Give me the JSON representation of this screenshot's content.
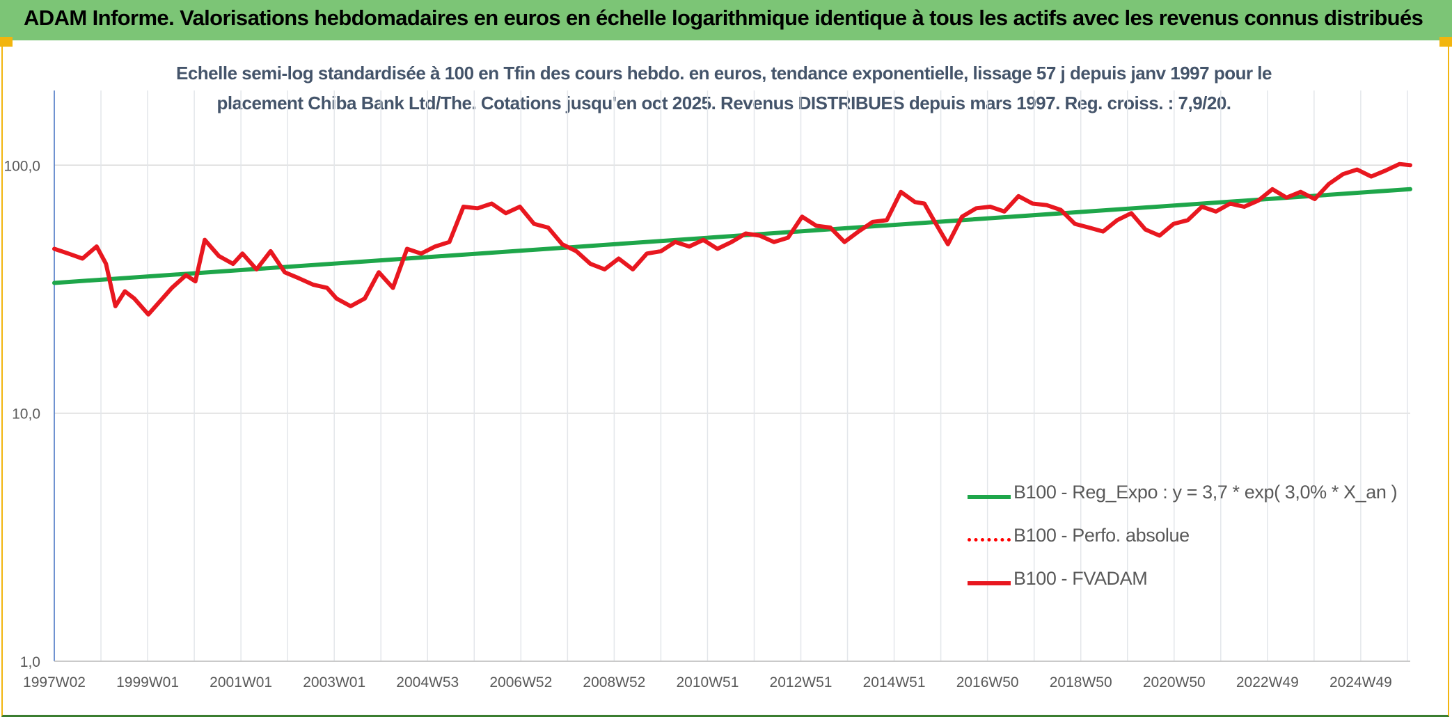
{
  "header": {
    "title": "ADAM Informe. Valorisations hebdomadaires en euros en échelle logarithmique identique à tous les actifs avec les revenus connus distribués"
  },
  "chart_data": {
    "type": "line",
    "subtitle_line1": "Echelle semi-log standardisée à 100 en Tfin des cours hebdo. en euros, tendance exponentielle, lissage 57 j depuis janv 1997 pour le",
    "subtitle_line2": "placement Chiba Bank Ltd/The. Cotations jusqu'en oct 2025. Revenus DISTRIBUES depuis mars 1997. Reg. croiss. : 7,9/20.",
    "y_scale": "log",
    "ylim": [
      1,
      200
    ],
    "y_ticks": [
      1,
      10,
      100
    ],
    "y_tick_labels": [
      "1,0",
      "10,0",
      "100,0"
    ],
    "x_range": [
      1997.0,
      2025.83
    ],
    "x_tick_labels": [
      "1997W02",
      "1999W01",
      "2001W01",
      "2003W01",
      "2004W53",
      "2006W52",
      "2008W52",
      "2010W51",
      "2012W51",
      "2014W51",
      "2016W50",
      "2018W50",
      "2020W50",
      "2022W49",
      "2024W49"
    ],
    "grid": "vertical and horizontal",
    "legend_position": "lower-right",
    "series": [
      {
        "name": "B100 - Reg_Expo : y = 3,7 * exp( 3,0% *  X_an )",
        "color": "#1ea64a",
        "style": "solid",
        "x": [
          1997.0,
          2025.83
        ],
        "values": [
          33.5,
          80.0
        ]
      },
      {
        "name": "B100 - Perfo. absolue",
        "color": "#ff0000",
        "style": "dotted",
        "x": [],
        "values": []
      },
      {
        "name": "B100 - FVADAM",
        "color": "#e8171f",
        "style": "solid",
        "x": [
          1997.0,
          1997.3,
          1997.6,
          1997.9,
          1998.1,
          1998.3,
          1998.5,
          1998.7,
          1999.0,
          1999.3,
          1999.5,
          1999.8,
          2000.0,
          2000.2,
          2000.5,
          2000.8,
          2001.0,
          2001.3,
          2001.6,
          2001.9,
          2002.2,
          2002.5,
          2002.8,
          2003.0,
          2003.3,
          2003.6,
          2003.9,
          2004.2,
          2004.5,
          2004.8,
          2005.1,
          2005.4,
          2005.7,
          2006.0,
          2006.3,
          2006.6,
          2006.9,
          2007.2,
          2007.5,
          2007.8,
          2008.1,
          2008.4,
          2008.7,
          2009.0,
          2009.3,
          2009.6,
          2009.9,
          2010.2,
          2010.5,
          2010.8,
          2011.1,
          2011.4,
          2011.7,
          2012.0,
          2012.3,
          2012.6,
          2012.9,
          2013.2,
          2013.5,
          2013.8,
          2014.1,
          2014.4,
          2014.7,
          2015.0,
          2015.3,
          2015.5,
          2015.7,
          2016.0,
          2016.3,
          2016.6,
          2016.9,
          2017.2,
          2017.5,
          2017.8,
          2018.1,
          2018.4,
          2018.7,
          2019.0,
          2019.3,
          2019.6,
          2019.9,
          2020.2,
          2020.5,
          2020.8,
          2021.1,
          2021.4,
          2021.7,
          2022.0,
          2022.3,
          2022.6,
          2022.9,
          2023.2,
          2023.5,
          2023.8,
          2024.1,
          2024.4,
          2024.7,
          2025.0,
          2025.3,
          2025.6,
          2025.83
        ],
        "values": [
          46,
          44,
          42,
          47,
          40,
          27,
          31,
          29,
          25,
          29,
          32,
          36,
          34,
          50,
          43,
          40,
          44,
          38,
          45,
          37,
          35,
          33,
          32,
          29,
          27,
          29,
          37,
          32,
          46,
          44,
          47,
          49,
          68,
          67,
          70,
          64,
          68,
          58,
          56,
          48,
          45,
          40,
          38,
          42,
          38,
          44,
          45,
          49,
          47,
          50,
          46,
          49,
          53,
          52,
          49,
          51,
          62,
          57,
          56,
          49,
          54,
          59,
          60,
          78,
          71,
          70,
          60,
          48,
          62,
          67,
          68,
          65,
          75,
          70,
          69,
          66,
          58,
          56,
          54,
          60,
          64,
          55,
          52,
          58,
          60,
          68,
          65,
          70,
          68,
          72,
          80,
          74,
          78,
          73,
          84,
          92,
          96,
          90,
          95,
          101,
          100
        ]
      }
    ]
  }
}
